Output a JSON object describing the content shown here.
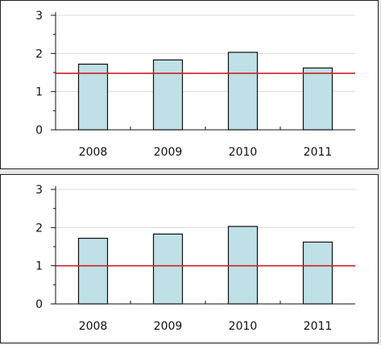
{
  "chart_data": [
    {
      "type": "bar",
      "categories": [
        "2008",
        "2009",
        "2010",
        "2011"
      ],
      "values": [
        1.72,
        1.83,
        2.03,
        1.62
      ],
      "reference_line": 1.48,
      "ylim": [
        0,
        3
      ],
      "yticks": [
        "0",
        "1",
        "2",
        "3"
      ],
      "title": "",
      "xlabel": "",
      "ylabel": "",
      "grid": true,
      "bar_color": "#bfe0e6",
      "line_color": "#cc2222"
    },
    {
      "type": "bar",
      "categories": [
        "2008",
        "2009",
        "2010",
        "2011"
      ],
      "values": [
        1.72,
        1.83,
        2.03,
        1.62
      ],
      "reference_line": 1.0,
      "ylim": [
        0,
        3
      ],
      "yticks": [
        "0",
        "1",
        "2",
        "3"
      ],
      "title": "",
      "xlabel": "",
      "ylabel": "",
      "grid": true,
      "bar_color": "#bfe0e6",
      "line_color": "#cc2222"
    }
  ]
}
